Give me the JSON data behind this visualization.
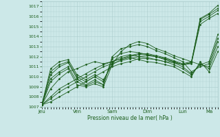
{
  "bg_color": "#cce8e8",
  "plot_bg_color": "#cce8e8",
  "grid_color": "#aacccc",
  "line_color": "#1a5c1a",
  "marker_color": "#1a5c1a",
  "ylim": [
    1007,
    1017.5
  ],
  "yticks": [
    1007,
    1008,
    1009,
    1010,
    1011,
    1012,
    1013,
    1014,
    1015,
    1016,
    1017
  ],
  "xlabel": "Pression niveau de la mer( hPa )",
  "day_labels": [
    "Jeu",
    "Ven",
    "Sam",
    "Dim",
    "Lun",
    "Ma"
  ],
  "day_positions": [
    0,
    48,
    96,
    144,
    192,
    228
  ],
  "total_hours": 240,
  "series": [
    [
      0,
      1007.2,
      12,
      1007.5,
      24,
      1008.0,
      36,
      1008.5,
      48,
      1009.0,
      60,
      1009.5,
      72,
      1010.0,
      84,
      1010.5,
      96,
      1011.0,
      108,
      1011.3,
      120,
      1011.5,
      132,
      1011.8,
      144,
      1011.8,
      156,
      1011.7,
      168,
      1011.5,
      180,
      1011.4,
      192,
      1011.2,
      204,
      1011.3,
      216,
      1015.2,
      228,
      1015.8,
      240,
      1016.3
    ],
    [
      0,
      1007.2,
      12,
      1007.8,
      24,
      1008.5,
      36,
      1009.0,
      48,
      1009.5,
      60,
      1010.0,
      72,
      1010.5,
      84,
      1011.0,
      96,
      1011.3,
      108,
      1011.6,
      120,
      1011.8,
      132,
      1012.0,
      144,
      1012.1,
      156,
      1012.0,
      168,
      1011.8,
      180,
      1011.5,
      192,
      1011.2,
      204,
      1011.4,
      216,
      1015.5,
      228,
      1016.0,
      240,
      1016.6
    ],
    [
      0,
      1007.2,
      12,
      1008.0,
      24,
      1008.8,
      36,
      1009.3,
      48,
      1009.8,
      60,
      1010.3,
      72,
      1010.8,
      84,
      1011.2,
      96,
      1011.5,
      108,
      1011.8,
      120,
      1012.0,
      132,
      1012.2,
      144,
      1012.3,
      156,
      1012.1,
      168,
      1011.9,
      180,
      1011.6,
      192,
      1011.3,
      204,
      1011.5,
      216,
      1015.7,
      228,
      1016.2,
      240,
      1016.8
    ],
    [
      0,
      1007.2,
      12,
      1008.8,
      24,
      1009.8,
      36,
      1010.5,
      48,
      1010.8,
      60,
      1011.2,
      72,
      1011.5,
      84,
      1011.3,
      96,
      1011.5,
      108,
      1011.8,
      120,
      1012.1,
      132,
      1012.3,
      144,
      1012.2,
      156,
      1012.0,
      168,
      1011.8,
      180,
      1011.5,
      192,
      1011.2,
      204,
      1011.4,
      216,
      1015.8,
      228,
      1016.3,
      240,
      1017.1
    ],
    [
      0,
      1007.2,
      12,
      1009.5,
      24,
      1010.3,
      36,
      1010.8,
      48,
      1009.2,
      60,
      1009.0,
      72,
      1009.3,
      84,
      1009.0,
      96,
      1011.2,
      108,
      1012.5,
      120,
      1013.2,
      132,
      1013.5,
      144,
      1013.3,
      156,
      1012.8,
      168,
      1012.5,
      180,
      1012.1,
      192,
      1011.8,
      204,
      1011.5,
      216,
      1011.2,
      228,
      1011.5,
      240,
      1014.2
    ],
    [
      0,
      1007.2,
      12,
      1009.8,
      24,
      1010.5,
      36,
      1011.0,
      48,
      1009.5,
      60,
      1009.1,
      72,
      1009.5,
      84,
      1009.2,
      96,
      1012.0,
      108,
      1012.8,
      120,
      1013.0,
      132,
      1013.2,
      144,
      1013.0,
      156,
      1012.6,
      168,
      1012.3,
      180,
      1011.9,
      192,
      1011.5,
      204,
      1010.5,
      216,
      1011.0,
      228,
      1011.3,
      240,
      1013.8
    ],
    [
      0,
      1007.2,
      12,
      1010.2,
      24,
      1011.0,
      36,
      1011.4,
      48,
      1009.8,
      60,
      1009.2,
      72,
      1009.7,
      84,
      1009.2,
      96,
      1011.8,
      108,
      1012.3,
      120,
      1012.5,
      132,
      1012.4,
      144,
      1012.2,
      156,
      1012.0,
      168,
      1011.7,
      180,
      1011.4,
      192,
      1011.0,
      204,
      1010.3,
      216,
      1011.2,
      228,
      1011.0,
      240,
      1013.5
    ],
    [
      0,
      1007.2,
      12,
      1010.5,
      24,
      1011.2,
      36,
      1011.5,
      48,
      1010.0,
      60,
      1009.5,
      72,
      1010.0,
      84,
      1009.5,
      96,
      1011.5,
      108,
      1012.0,
      120,
      1012.2,
      132,
      1012.0,
      144,
      1011.9,
      156,
      1011.7,
      168,
      1011.5,
      180,
      1011.2,
      192,
      1010.8,
      204,
      1010.2,
      216,
      1011.3,
      228,
      1010.8,
      240,
      1013.0
    ],
    [
      0,
      1007.2,
      12,
      1010.8,
      24,
      1011.5,
      36,
      1011.7,
      48,
      1010.2,
      60,
      1009.7,
      72,
      1010.2,
      84,
      1009.7,
      96,
      1011.2,
      108,
      1011.7,
      120,
      1011.9,
      132,
      1011.7,
      144,
      1011.5,
      156,
      1011.4,
      168,
      1011.2,
      180,
      1011.0,
      192,
      1010.5,
      204,
      1010.0,
      216,
      1011.5,
      228,
      1010.5,
      240,
      1012.5
    ]
  ]
}
